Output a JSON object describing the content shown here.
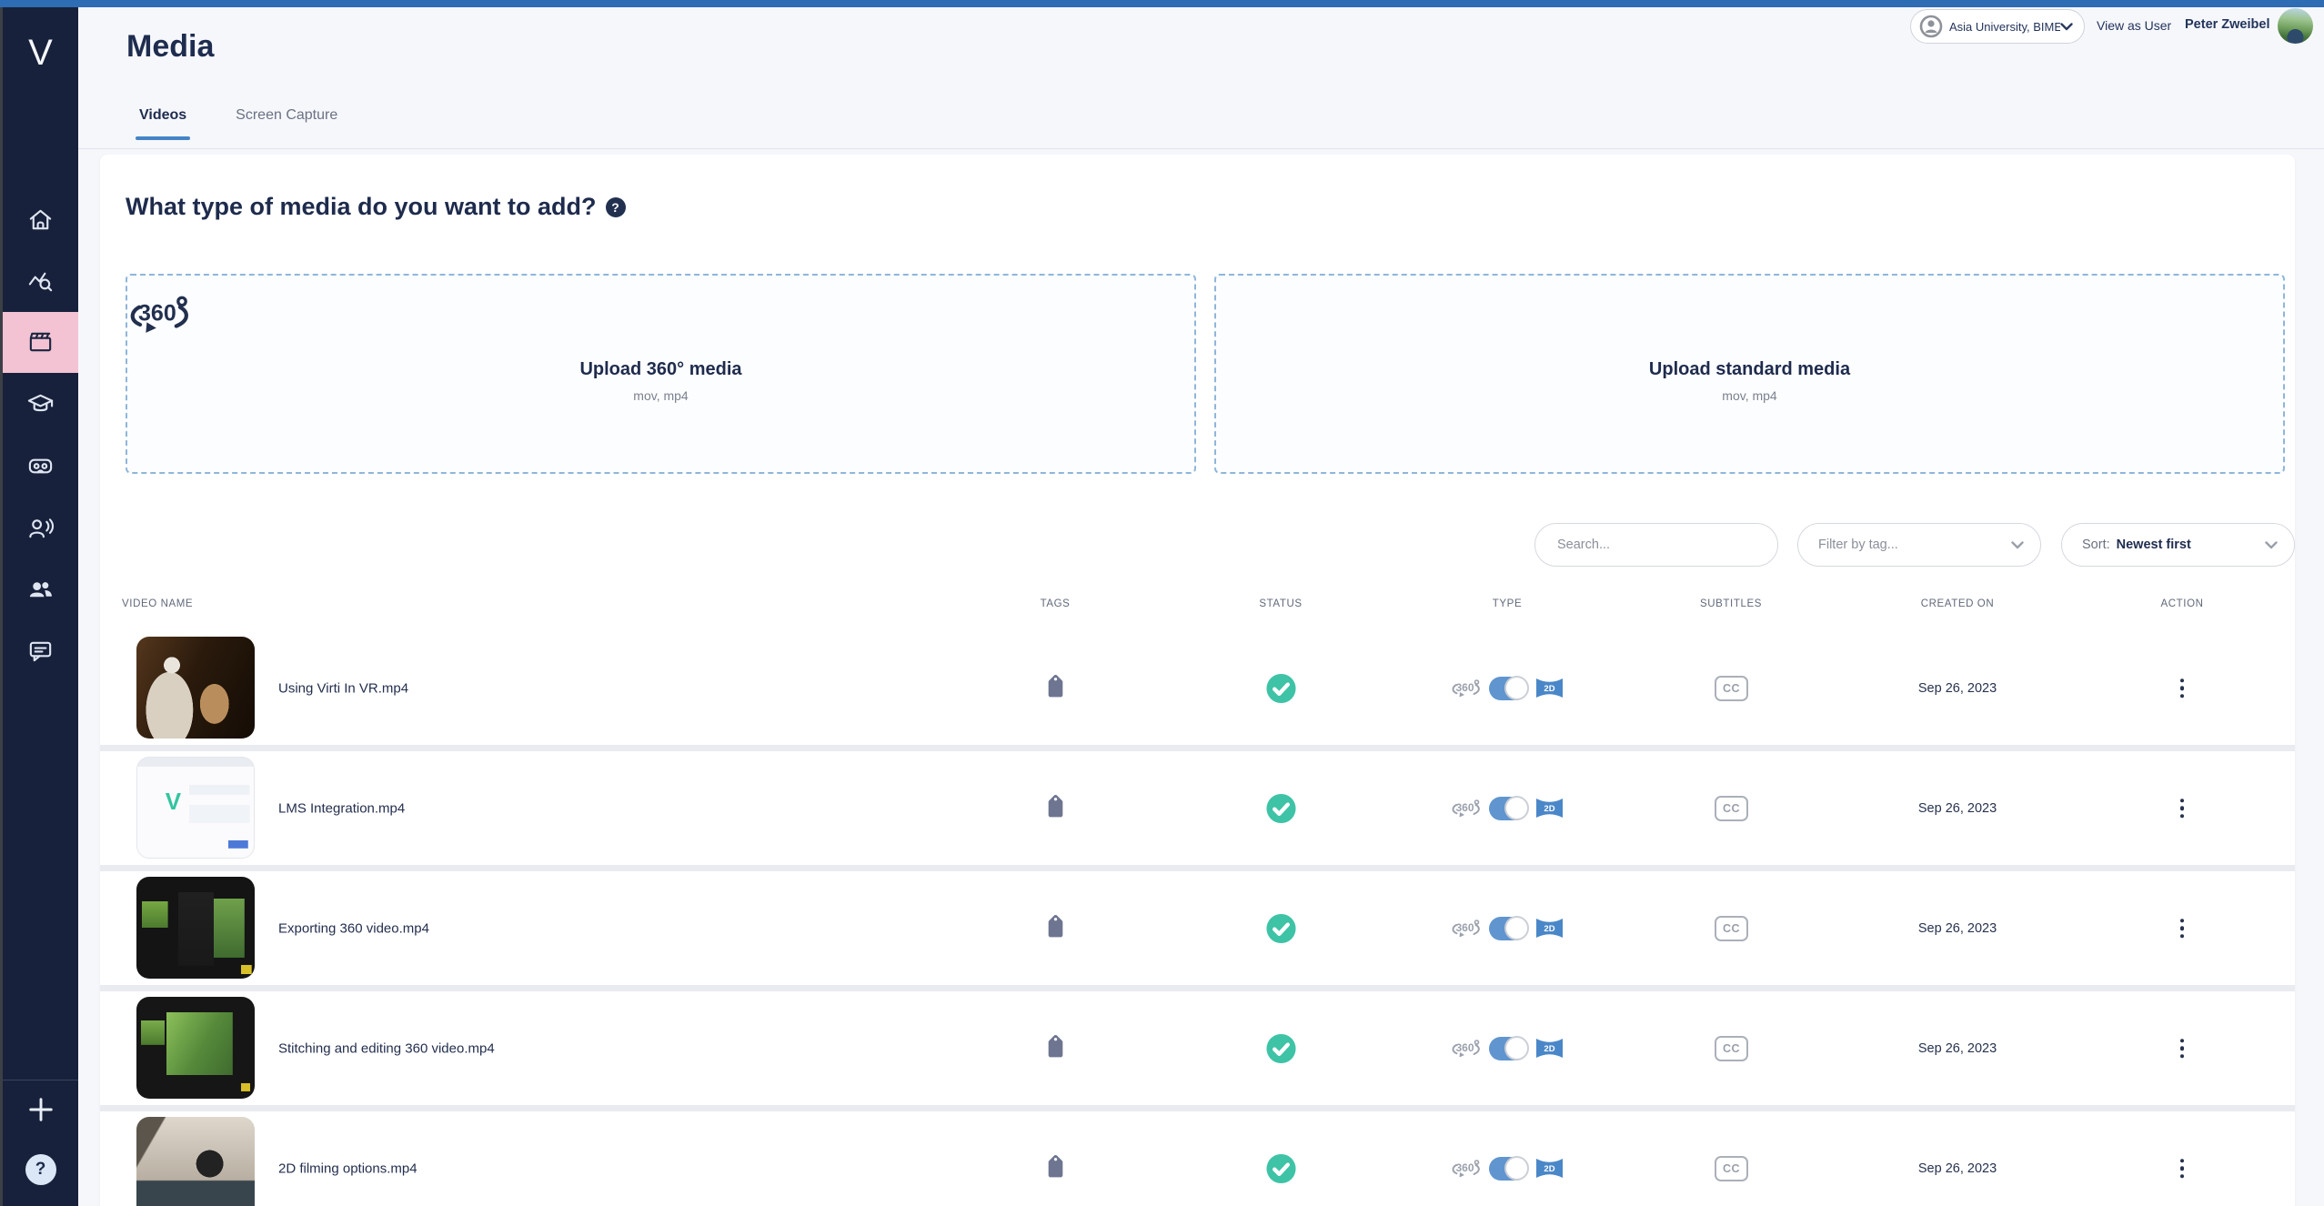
{
  "colors": {
    "top_bar": "#2e6cb3",
    "sidebar_bg": "#18213b",
    "active_item_pink": "#f3c3d3",
    "accent_blue": "#4484c6",
    "toggle_blue": "#6095cf",
    "type_badge_blue": "#4a87c8",
    "status_success_teal": "#3ec3a6",
    "text_navy": "#1e2c4f"
  },
  "labels": {
    "logo": "V",
    "subtitles_badge": "CC",
    "type_badge_2d": "2D",
    "help": "?"
  },
  "header": {
    "title": "Media",
    "tabs": [
      {
        "label": "Videos",
        "active": true
      },
      {
        "label": "Screen Capture",
        "active": false
      }
    ],
    "org_selector": "Asia University, BIME",
    "view_as_user": "View as User",
    "user_name": "Peter Zweibel"
  },
  "sidebar": {
    "items": [
      "home",
      "analytics",
      "media",
      "courses",
      "vr-headset",
      "presenter",
      "users",
      "feedback"
    ],
    "active_item": "media",
    "footer_items": [
      "add",
      "help"
    ]
  },
  "upload": {
    "heading": "What type of media do you want to add?",
    "options": [
      {
        "title": "Upload 360° media",
        "formats": "mov, mp4",
        "icon": "360-rotate-icon"
      },
      {
        "title": "Upload standard media",
        "formats": "mov, mp4"
      }
    ]
  },
  "filters": {
    "search_placeholder": "Search...",
    "tag_filter_placeholder": "Filter by tag...",
    "sort_label": "Sort:",
    "sort_value": "Newest first"
  },
  "table": {
    "columns": [
      "VIDEO NAME",
      "TAGS",
      "STATUS",
      "TYPE",
      "SUBTITLES",
      "CREATED ON",
      "ACTION"
    ],
    "rows": [
      {
        "name": "Using Virti In VR.mp4",
        "created_on": "Sep 26, 2023",
        "status": "published",
        "type": "2D",
        "thumb": "vr-person"
      },
      {
        "name": "LMS Integration.mp4",
        "created_on": "Sep 26, 2023",
        "status": "published",
        "type": "2D",
        "thumb": "lms-app"
      },
      {
        "name": "Exporting 360 video.mp4",
        "created_on": "Sep 26, 2023",
        "status": "published",
        "type": "2D",
        "thumb": "editor-export"
      },
      {
        "name": "Stitching and editing 360 video.mp4",
        "created_on": "Sep 26, 2023",
        "status": "published",
        "type": "2D",
        "thumb": "editor-stitch"
      },
      {
        "name": "2D filming options.mp4",
        "created_on": "Sep 26, 2023",
        "status": "published",
        "type": "2D",
        "thumb": "filming-desk"
      }
    ]
  }
}
